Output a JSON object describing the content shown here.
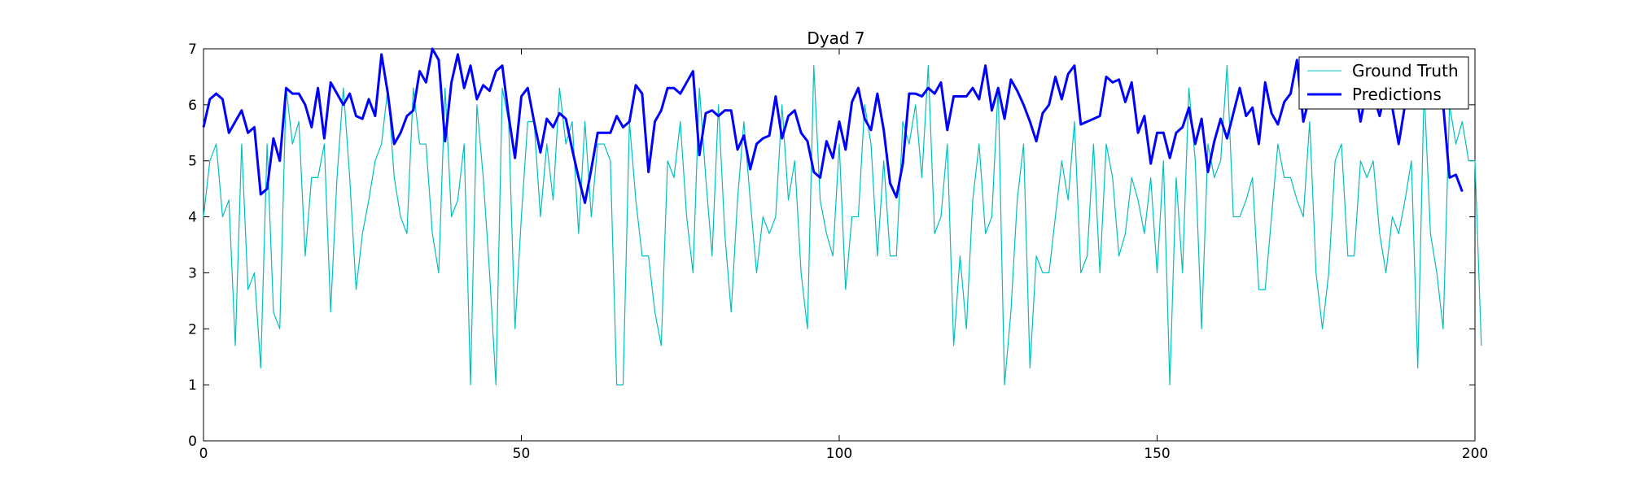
{
  "chart_data": {
    "type": "line",
    "title": "Dyad 7",
    "xlabel": "",
    "ylabel": "",
    "xlim": [
      0,
      200
    ],
    "ylim": [
      0,
      7
    ],
    "x_ticks": [
      0,
      50,
      100,
      150,
      200
    ],
    "y_ticks": [
      0,
      1,
      2,
      3,
      4,
      5,
      6,
      7
    ],
    "grid": false,
    "legend_position": "top-right",
    "series": [
      {
        "name": "Ground Truth",
        "color": "#00bfbf",
        "style": "thin",
        "values": [
          4.0,
          5.0,
          5.3,
          4.0,
          4.3,
          1.7,
          5.3,
          2.7,
          3.0,
          1.3,
          5.3,
          2.3,
          2.0,
          6.3,
          5.3,
          5.7,
          3.3,
          4.7,
          4.7,
          5.3,
          2.3,
          4.7,
          6.3,
          4.7,
          2.7,
          3.7,
          4.3,
          5.0,
          5.3,
          6.3,
          4.7,
          4.0,
          3.7,
          6.3,
          5.3,
          5.3,
          3.7,
          3.0,
          6.3,
          4.0,
          4.3,
          5.3,
          1.0,
          6.0,
          4.7,
          3.0,
          1.0,
          6.3,
          5.7,
          2.0,
          4.0,
          5.7,
          5.7,
          4.0,
          5.3,
          4.3,
          6.3,
          5.3,
          5.7,
          3.7,
          5.7,
          4.0,
          5.3,
          5.3,
          5.0,
          1.0,
          1.0,
          5.7,
          4.3,
          3.3,
          3.3,
          2.3,
          1.7,
          5.0,
          4.7,
          5.7,
          4.0,
          3.0,
          6.3,
          4.7,
          3.3,
          6.0,
          3.7,
          2.3,
          4.3,
          5.7,
          4.3,
          3.0,
          4.0,
          3.7,
          4.0,
          6.0,
          4.3,
          5.0,
          3.0,
          2.0,
          6.7,
          4.3,
          3.7,
          3.3,
          5.3,
          2.7,
          4.0,
          4.0,
          6.0,
          5.3,
          3.3,
          5.0,
          3.3,
          3.3,
          5.7,
          5.3,
          6.0,
          4.7,
          6.7,
          3.7,
          4.0,
          5.3,
          1.7,
          3.3,
          2.0,
          4.3,
          5.3,
          3.7,
          4.0,
          6.3,
          1.0,
          2.3,
          4.3,
          5.3,
          1.3,
          3.3,
          3.0,
          3.0,
          4.0,
          5.0,
          4.3,
          5.7,
          3.0,
          3.3,
          5.3,
          3.0,
          5.3,
          4.7,
          3.3,
          3.7,
          4.7,
          4.3,
          3.7,
          4.7,
          3.0,
          5.0,
          1.0,
          4.7,
          3.0,
          6.3,
          5.0,
          2.0,
          5.3,
          4.7,
          5.0,
          6.7,
          4.0,
          4.0,
          4.3,
          4.7,
          2.7,
          2.7,
          4.0,
          5.3,
          4.7,
          4.7,
          4.3,
          4.0,
          5.7,
          3.0,
          2.0,
          3.0,
          5.0,
          5.3,
          3.3,
          3.3,
          5.0,
          4.7,
          5.0,
          3.7,
          3.0,
          4.0,
          3.7,
          4.3,
          5.0,
          1.3,
          6.3,
          3.7,
          3.0,
          2.0,
          6.0,
          5.3,
          5.7,
          5.0,
          5.0,
          1.7
        ]
      },
      {
        "name": "Predictions",
        "color": "#0000ff",
        "style": "thick",
        "values": [
          5.6,
          6.1,
          6.2,
          6.1,
          5.5,
          5.7,
          5.9,
          5.5,
          5.6,
          4.4,
          4.5,
          5.4,
          5.0,
          6.3,
          6.2,
          6.2,
          6.0,
          5.6,
          6.3,
          5.4,
          6.4,
          6.2,
          6.0,
          6.2,
          5.8,
          5.75,
          6.1,
          5.8,
          6.9,
          6.2,
          5.3,
          5.5,
          5.8,
          5.9,
          6.6,
          6.4,
          7.0,
          6.8,
          5.35,
          6.4,
          6.9,
          6.3,
          6.7,
          6.1,
          6.35,
          6.25,
          6.6,
          6.7,
          5.8,
          5.05,
          6.15,
          6.3,
          5.7,
          5.15,
          5.75,
          5.6,
          5.85,
          5.75,
          5.2,
          4.7,
          4.25,
          4.85,
          5.5,
          5.5,
          5.5,
          5.8,
          5.6,
          5.7,
          6.35,
          6.2,
          4.8,
          5.7,
          5.9,
          6.3,
          6.3,
          6.2,
          6.4,
          6.6,
          5.1,
          5.85,
          5.9,
          5.8,
          5.9,
          5.9,
          5.2,
          5.45,
          4.85,
          5.3,
          5.4,
          5.45,
          6.15,
          5.4,
          5.8,
          5.9,
          5.5,
          5.35,
          4.8,
          4.7,
          5.35,
          5.05,
          5.7,
          5.2,
          6.05,
          6.3,
          5.75,
          5.55,
          6.2,
          5.55,
          4.6,
          4.35,
          4.95,
          6.2,
          6.2,
          6.15,
          6.3,
          6.2,
          6.4,
          5.55,
          6.15,
          6.15,
          6.15,
          6.3,
          6.1,
          6.7,
          5.9,
          6.3,
          5.75,
          6.45,
          6.25,
          6.0,
          5.7,
          5.35,
          5.85,
          6.0,
          6.5,
          6.1,
          6.55,
          6.7,
          5.65,
          5.7,
          5.75,
          5.8,
          6.5,
          6.4,
          6.45,
          6.05,
          6.4,
          5.5,
          5.8,
          4.95,
          5.5,
          5.5,
          5.05,
          5.5,
          5.6,
          5.95,
          5.3,
          5.75,
          4.8,
          5.35,
          5.75,
          5.4,
          5.85,
          6.3,
          5.8,
          5.95,
          5.3,
          6.4,
          5.85,
          5.65,
          6.05,
          6.2,
          6.8,
          5.7,
          6.15,
          6.1,
          6.3,
          6.1,
          6.2,
          6.1,
          6.1,
          6.4,
          5.7,
          6.3,
          6.2,
          5.8,
          6.3,
          5.95,
          5.3,
          6.0,
          6.2,
          6.3,
          6.4,
          6.1,
          6.5,
          6.0,
          4.7,
          4.75,
          4.45
        ]
      }
    ]
  }
}
